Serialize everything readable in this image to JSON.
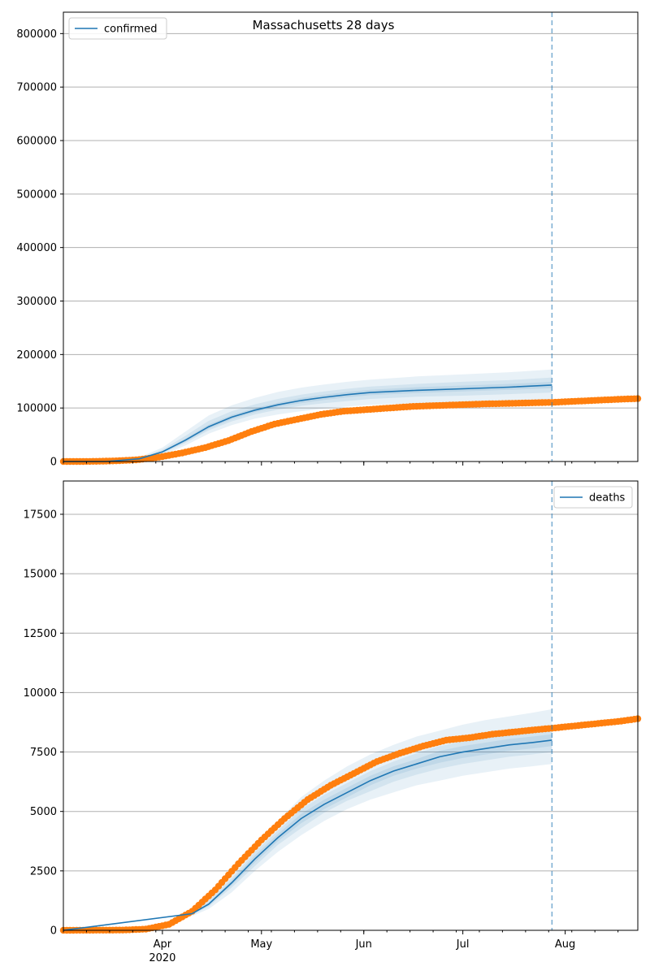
{
  "figure": {
    "title": "Massachusetts 28 days"
  },
  "colors": {
    "model": "#1f77b4",
    "observed": "#ff7f0e",
    "band": "#1f77b4",
    "grid": "#b0b0b0",
    "cutoff": "#1f77b4"
  },
  "chart_data": [
    {
      "type": "line",
      "title": "Massachusetts 28 days",
      "legend": {
        "entries": [
          "confirmed"
        ],
        "placement": "top-left"
      },
      "x_range": [
        "2020-03-02",
        "2020-08-23"
      ],
      "ylim": [
        0,
        840000
      ],
      "yticks": [
        0,
        100000,
        200000,
        300000,
        400000,
        500000,
        600000,
        700000,
        800000
      ],
      "ytick_labels": [
        "0",
        "100000",
        "200000",
        "300000",
        "400000",
        "500000",
        "600000",
        "700000",
        "800000"
      ],
      "grid": "horizontal",
      "forecast_cutoff": "2020-07-28",
      "series": [
        {
          "name": "confirmed",
          "kind": "model-median",
          "x": [
            "2020-03-02",
            "2020-03-15",
            "2020-03-25",
            "2020-04-01",
            "2020-04-08",
            "2020-04-15",
            "2020-04-22",
            "2020-04-29",
            "2020-05-06",
            "2020-05-13",
            "2020-05-20",
            "2020-05-27",
            "2020-06-03",
            "2020-06-17",
            "2020-07-01",
            "2020-07-15",
            "2020-07-28"
          ],
          "values": [
            0,
            0,
            5000,
            18000,
            40000,
            65000,
            83000,
            96000,
            106000,
            114000,
            120000,
            125000,
            129000,
            133000,
            136000,
            139000,
            143000
          ]
        },
        {
          "kind": "observed",
          "x": [
            "2020-03-02",
            "2020-03-10",
            "2020-03-17",
            "2020-03-24",
            "2020-03-31",
            "2020-04-07",
            "2020-04-14",
            "2020-04-21",
            "2020-04-28",
            "2020-05-05",
            "2020-05-12",
            "2020-05-19",
            "2020-05-26",
            "2020-06-02",
            "2020-06-09",
            "2020-06-16",
            "2020-06-23",
            "2020-06-30",
            "2020-07-07",
            "2020-07-14",
            "2020-07-21",
            "2020-07-28",
            "2020-08-04",
            "2020-08-11",
            "2020-08-18",
            "2020-08-23"
          ],
          "values": [
            0,
            100,
            1000,
            3000,
            8000,
            16000,
            26000,
            39000,
            56000,
            70000,
            79000,
            88000,
            94000,
            97000,
            100000,
            103000,
            104500,
            106000,
            107500,
            108500,
            109500,
            110500,
            112500,
            114500,
            116500,
            117500
          ]
        }
      ],
      "bands": [
        {
          "x": [
            "2020-03-25",
            "2020-04-01",
            "2020-04-08",
            "2020-04-15",
            "2020-04-22",
            "2020-04-29",
            "2020-05-06",
            "2020-05-13",
            "2020-05-20",
            "2020-05-27",
            "2020-06-03",
            "2020-06-17",
            "2020-07-01",
            "2020-07-15",
            "2020-07-28"
          ],
          "lower": [
            3000,
            12000,
            30000,
            52000,
            68000,
            80000,
            88000,
            94000,
            99000,
            103000,
            106000,
            109000,
            111000,
            113000,
            115000
          ],
          "upper": [
            8000,
            26000,
            56000,
            86000,
            105000,
            119000,
            130000,
            138000,
            144000,
            149000,
            153000,
            159000,
            163000,
            167000,
            172000
          ]
        },
        {
          "x": [
            "2020-03-25",
            "2020-04-01",
            "2020-04-08",
            "2020-04-15",
            "2020-04-22",
            "2020-04-29",
            "2020-05-06",
            "2020-05-13",
            "2020-05-20",
            "2020-05-27",
            "2020-06-03",
            "2020-06-17",
            "2020-07-01",
            "2020-07-15",
            "2020-07-28"
          ],
          "lower": [
            4000,
            15000,
            35000,
            58000,
            75000,
            88000,
            97000,
            104000,
            109000,
            113000,
            117000,
            121000,
            123000,
            126000,
            129000
          ],
          "upper": [
            6500,
            22000,
            48000,
            76000,
            94000,
            107000,
            117000,
            125000,
            131000,
            136000,
            140000,
            145000,
            149000,
            152000,
            157000
          ]
        },
        {
          "x": [
            "2020-03-25",
            "2020-04-01",
            "2020-04-08",
            "2020-04-15",
            "2020-04-22",
            "2020-04-29",
            "2020-05-06",
            "2020-05-13",
            "2020-05-20",
            "2020-05-27",
            "2020-06-03",
            "2020-06-17",
            "2020-07-01",
            "2020-07-15",
            "2020-07-28"
          ],
          "lower": [
            4500,
            16500,
            37000,
            61000,
            79000,
            92000,
            102000,
            109000,
            115000,
            120000,
            124000,
            128000,
            131000,
            134000,
            137000
          ],
          "upper": [
            5500,
            19500,
            43000,
            69000,
            87000,
            100000,
            110000,
            119000,
            125000,
            130000,
            134000,
            139000,
            142000,
            145000,
            149000
          ]
        }
      ]
    },
    {
      "type": "line",
      "legend": {
        "entries": [
          "deaths"
        ],
        "placement": "top-right"
      },
      "x_range": [
        "2020-03-02",
        "2020-08-23"
      ],
      "ylim": [
        0,
        18900
      ],
      "yticks": [
        0,
        2500,
        5000,
        7500,
        10000,
        12500,
        15000,
        17500
      ],
      "ytick_labels": [
        "0",
        "2500",
        "5000",
        "7500",
        "10000",
        "12500",
        "15000",
        "17500"
      ],
      "grid": "horizontal",
      "forecast_cutoff": "2020-07-28",
      "xticks": [
        {
          "date": "2020-04-01",
          "label": "Apr",
          "sublabel": "2020"
        },
        {
          "date": "2020-05-01",
          "label": "May",
          "sublabel": ""
        },
        {
          "date": "2020-06-01",
          "label": "Jun",
          "sublabel": ""
        },
        {
          "date": "2020-07-01",
          "label": "Jul",
          "sublabel": ""
        },
        {
          "date": "2020-08-01",
          "label": "Aug",
          "sublabel": ""
        }
      ],
      "series": [
        {
          "name": "deaths",
          "kind": "model-median",
          "x": [
            "2020-03-02",
            "2020-04-10",
            "2020-04-15",
            "2020-04-22",
            "2020-04-29",
            "2020-05-06",
            "2020-05-13",
            "2020-05-20",
            "2020-05-27",
            "2020-06-03",
            "2020-06-10",
            "2020-06-17",
            "2020-06-24",
            "2020-07-01",
            "2020-07-08",
            "2020-07-15",
            "2020-07-22",
            "2020-07-28"
          ],
          "values": [
            0,
            700,
            1100,
            2000,
            3000,
            3900,
            4700,
            5300,
            5800,
            6300,
            6700,
            7000,
            7300,
            7500,
            7650,
            7800,
            7900,
            8000
          ]
        },
        {
          "kind": "observed",
          "x": [
            "2020-03-02",
            "2020-03-20",
            "2020-03-27",
            "2020-04-03",
            "2020-04-10",
            "2020-04-17",
            "2020-04-24",
            "2020-05-01",
            "2020-05-08",
            "2020-05-15",
            "2020-05-22",
            "2020-05-29",
            "2020-06-05",
            "2020-06-12",
            "2020-06-19",
            "2020-06-26",
            "2020-07-03",
            "2020-07-10",
            "2020-07-17",
            "2020-07-24",
            "2020-07-28",
            "2020-08-04",
            "2020-08-11",
            "2020-08-18",
            "2020-08-23"
          ],
          "values": [
            0,
            10,
            50,
            250,
            800,
            1700,
            2800,
            3800,
            4700,
            5500,
            6100,
            6600,
            7100,
            7450,
            7750,
            8000,
            8100,
            8250,
            8350,
            8450,
            8500,
            8600,
            8700,
            8800,
            8900
          ]
        }
      ],
      "bands": [
        {
          "x": [
            "2020-04-10",
            "2020-04-15",
            "2020-04-22",
            "2020-04-29",
            "2020-05-06",
            "2020-05-13",
            "2020-05-20",
            "2020-05-27",
            "2020-06-03",
            "2020-06-10",
            "2020-06-17",
            "2020-06-24",
            "2020-07-01",
            "2020-07-08",
            "2020-07-15",
            "2020-07-22",
            "2020-07-28"
          ],
          "lower": [
            600,
            900,
            1600,
            2500,
            3300,
            4000,
            4600,
            5100,
            5500,
            5800,
            6100,
            6300,
            6500,
            6650,
            6800,
            6900,
            7000
          ],
          "upper": [
            800,
            1350,
            2400,
            3600,
            4600,
            5600,
            6300,
            6900,
            7400,
            7800,
            8150,
            8400,
            8650,
            8850,
            9000,
            9150,
            9300
          ]
        },
        {
          "x": [
            "2020-04-10",
            "2020-04-15",
            "2020-04-22",
            "2020-04-29",
            "2020-05-06",
            "2020-05-13",
            "2020-05-20",
            "2020-05-27",
            "2020-06-03",
            "2020-06-10",
            "2020-06-17",
            "2020-06-24",
            "2020-07-01",
            "2020-07-08",
            "2020-07-15",
            "2020-07-22",
            "2020-07-28"
          ],
          "lower": [
            650,
            1000,
            1800,
            2700,
            3600,
            4300,
            4950,
            5450,
            5850,
            6250,
            6550,
            6800,
            7000,
            7150,
            7300,
            7400,
            7500
          ],
          "upper": [
            750,
            1250,
            2200,
            3300,
            4200,
            5100,
            5700,
            6200,
            6700,
            7100,
            7450,
            7750,
            7950,
            8150,
            8300,
            8400,
            8550
          ]
        },
        {
          "x": [
            "2020-04-10",
            "2020-04-15",
            "2020-04-22",
            "2020-04-29",
            "2020-05-06",
            "2020-05-13",
            "2020-05-20",
            "2020-05-27",
            "2020-06-03",
            "2020-06-10",
            "2020-06-17",
            "2020-06-24",
            "2020-07-01",
            "2020-07-08",
            "2020-07-15",
            "2020-07-22",
            "2020-07-28"
          ],
          "lower": [
            680,
            1050,
            1900,
            2850,
            3750,
            4500,
            5100,
            5600,
            6100,
            6500,
            6800,
            7050,
            7250,
            7400,
            7550,
            7650,
            7750
          ],
          "upper": [
            720,
            1150,
            2100,
            3150,
            4050,
            4900,
            5500,
            6000,
            6500,
            6900,
            7200,
            7550,
            7750,
            7900,
            8050,
            8150,
            8250
          ]
        }
      ]
    }
  ]
}
